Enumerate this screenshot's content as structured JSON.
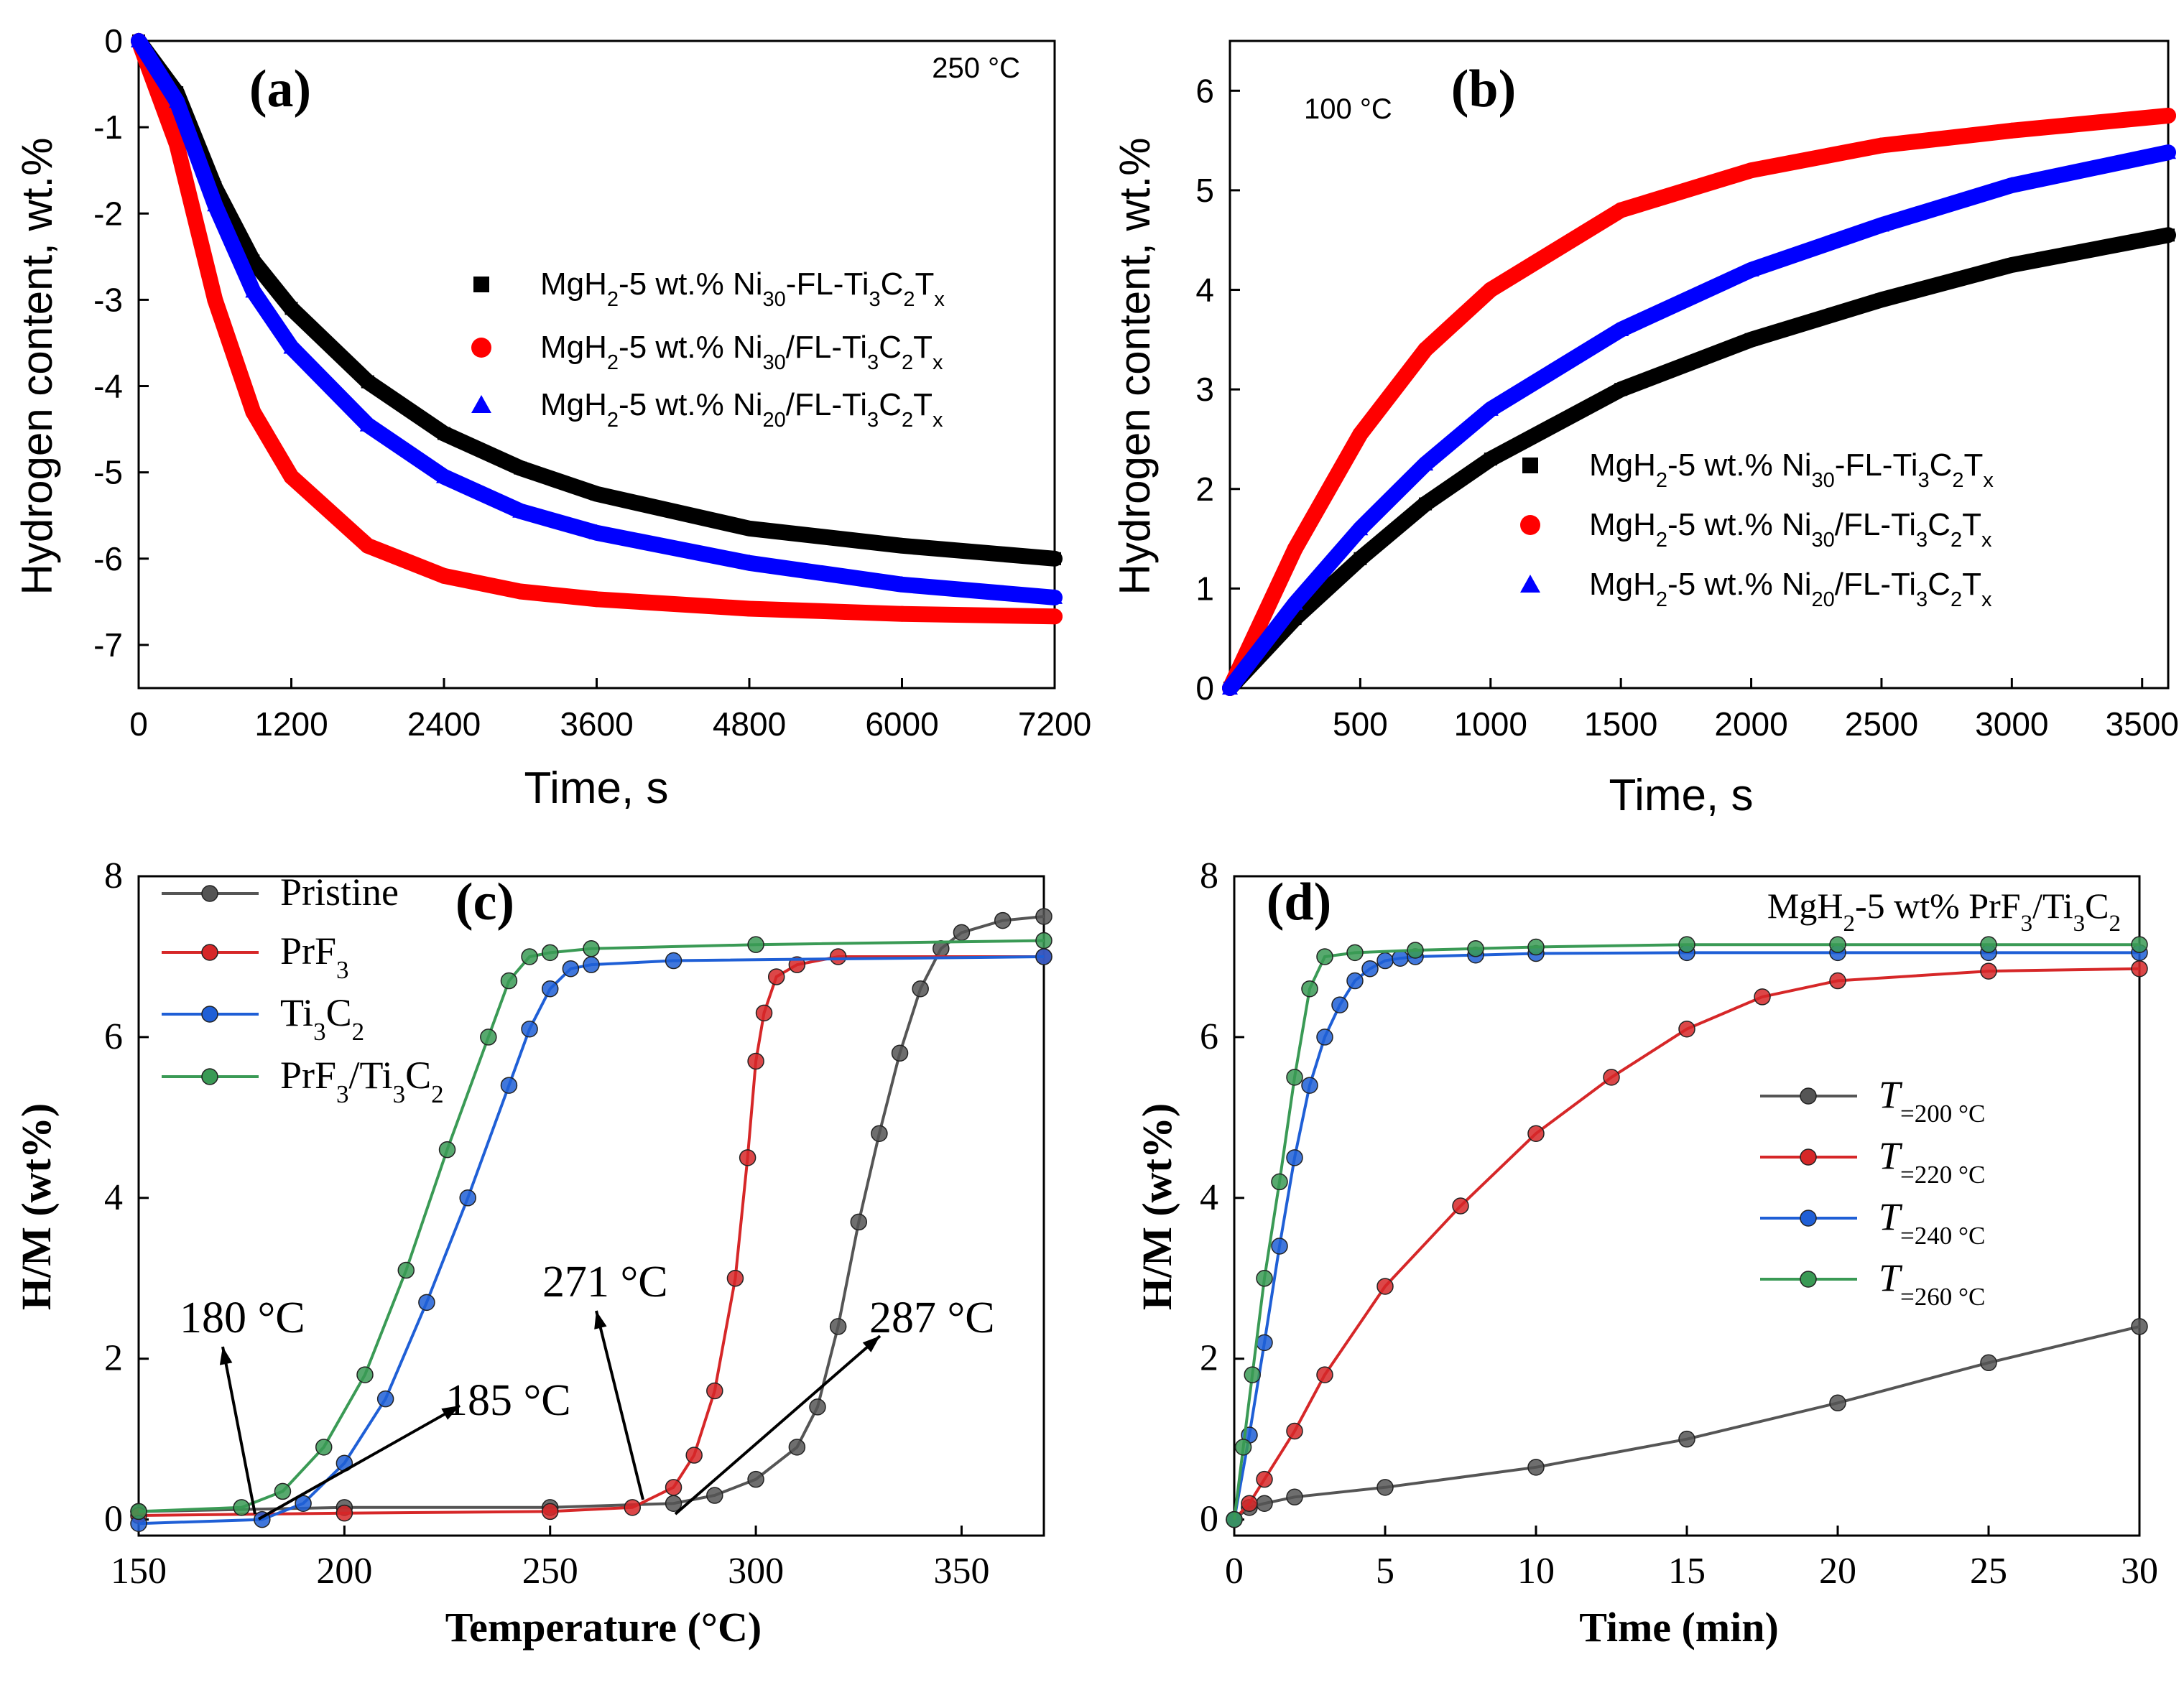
{
  "chart_data": [
    {
      "panel": "(a)",
      "type": "scatter",
      "annotation": "250 °C",
      "xlabel": "Time, s",
      "ylabel": "Hydrogen content, wt.%",
      "xlim": [
        0,
        7200
      ],
      "ylim": [
        -7.5,
        0
      ],
      "xticks": [
        0,
        1200,
        2400,
        3600,
        4800,
        6000,
        7200
      ],
      "yticks": [
        0,
        -1,
        -2,
        -3,
        -4,
        -5,
        -6,
        -7
      ],
      "legend_position": "center-right",
      "series": [
        {
          "name": "MgH2-5 wt.% Ni30-FL-Ti3C2Tx",
          "label_parts": [
            "MgH",
            "2",
            "-5 wt.% Ni",
            "30",
            "-FL-Ti",
            "3",
            "C",
            "2",
            "T",
            "x"
          ],
          "color": "#000000",
          "marker": "square",
          "x": [
            0,
            300,
            600,
            900,
            1200,
            1800,
            2400,
            3000,
            3600,
            4800,
            6000,
            7200
          ],
          "values": [
            0,
            -0.6,
            -1.7,
            -2.55,
            -3.1,
            -3.95,
            -4.55,
            -4.95,
            -5.25,
            -5.65,
            -5.85,
            -6.0
          ]
        },
        {
          "name": "MgH2-5 wt.% Ni30/FL-Ti3C2Tx",
          "label_parts": [
            "MgH",
            "2",
            "-5 wt.% Ni",
            "30",
            "/FL-Ti",
            "3",
            "C",
            "2",
            "T",
            "x"
          ],
          "color": "#ff0000",
          "marker": "circle",
          "x": [
            0,
            300,
            600,
            900,
            1200,
            1800,
            2400,
            3000,
            3600,
            4800,
            6000,
            7200
          ],
          "values": [
            0,
            -1.2,
            -3.0,
            -4.3,
            -5.05,
            -5.85,
            -6.2,
            -6.38,
            -6.47,
            -6.58,
            -6.64,
            -6.67
          ]
        },
        {
          "name": "MgH2-5 wt.% Ni20/FL-Ti3C2Tx",
          "label_parts": [
            "MgH",
            "2",
            "-5 wt.% Ni",
            "20",
            "/FL-Ti",
            "3",
            "C",
            "2",
            "T",
            "x"
          ],
          "color": "#0000ff",
          "marker": "triangle",
          "x": [
            0,
            300,
            600,
            900,
            1200,
            1800,
            2400,
            3000,
            3600,
            4800,
            6000,
            7200
          ],
          "values": [
            0,
            -0.7,
            -1.9,
            -2.9,
            -3.55,
            -4.45,
            -5.05,
            -5.45,
            -5.7,
            -6.05,
            -6.3,
            -6.45
          ]
        }
      ]
    },
    {
      "panel": "(b)",
      "type": "scatter",
      "annotation": "100 °C",
      "xlabel": "Time, s",
      "ylabel": "Hydrogen content, wt.%",
      "xlim": [
        0,
        3600
      ],
      "ylim": [
        0,
        6.5
      ],
      "xticks": [
        500,
        1000,
        1500,
        2000,
        2500,
        3000,
        3500
      ],
      "yticks": [
        0,
        1,
        2,
        3,
        4,
        5,
        6
      ],
      "legend_position": "bottom-right",
      "series": [
        {
          "name": "MgH2-5 wt.% Ni30-FL-Ti3C2Tx",
          "label_parts": [
            "MgH",
            "2",
            "-5 wt.% Ni",
            "30",
            "-FL-Ti",
            "3",
            "C",
            "2",
            "T",
            "x"
          ],
          "color": "#000000",
          "marker": "square",
          "x": [
            0,
            250,
            500,
            750,
            1000,
            1500,
            2000,
            2500,
            3000,
            3600
          ],
          "values": [
            0,
            0.7,
            1.3,
            1.85,
            2.3,
            3.0,
            3.5,
            3.9,
            4.25,
            4.55
          ]
        },
        {
          "name": "MgH2-5 wt.% Ni30/FL-Ti3C2Tx",
          "label_parts": [
            "MgH",
            "2",
            "-5 wt.% Ni",
            "30",
            "/FL-Ti",
            "3",
            "C",
            "2",
            "T",
            "x"
          ],
          "color": "#ff0000",
          "marker": "circle",
          "x": [
            0,
            250,
            500,
            750,
            1000,
            1500,
            2000,
            2500,
            3000,
            3600
          ],
          "values": [
            0,
            1.4,
            2.55,
            3.4,
            4.0,
            4.8,
            5.2,
            5.45,
            5.6,
            5.75
          ]
        },
        {
          "name": "MgH2-5 wt.% Ni20/FL-Ti3C2Tx",
          "label_parts": [
            "MgH",
            "2",
            "-5 wt.% Ni",
            "20",
            "/FL-Ti",
            "3",
            "C",
            "2",
            "T",
            "x"
          ],
          "color": "#0000ff",
          "marker": "triangle",
          "x": [
            0,
            250,
            500,
            750,
            1000,
            1500,
            2000,
            2500,
            3000,
            3600
          ],
          "values": [
            0,
            0.85,
            1.6,
            2.25,
            2.8,
            3.6,
            4.2,
            4.65,
            5.05,
            5.38
          ]
        }
      ]
    },
    {
      "panel": "(c)",
      "type": "line",
      "xlabel": "Temperature (°C)",
      "ylabel": "H/M (wt%)",
      "xlim": [
        150,
        370
      ],
      "ylim": [
        -0.2,
        8
      ],
      "xticks": [
        150,
        200,
        250,
        300,
        350
      ],
      "yticks": [
        0,
        2,
        4,
        6,
        8
      ],
      "legend_position": "top-left",
      "annotations": [
        "180 °C",
        "185 °C",
        "271 °C",
        "287 °C"
      ],
      "series": [
        {
          "name": "Pristine",
          "label_parts": [
            "Pristine"
          ],
          "color": "#555555",
          "marker": "circle",
          "x": [
            150,
            200,
            250,
            280,
            290,
            300,
            310,
            315,
            320,
            325,
            330,
            335,
            340,
            345,
            350,
            360,
            370
          ],
          "values": [
            0.1,
            0.15,
            0.15,
            0.2,
            0.3,
            0.5,
            0.9,
            1.4,
            2.4,
            3.7,
            4.8,
            5.8,
            6.6,
            7.1,
            7.3,
            7.45,
            7.5
          ]
        },
        {
          "name": "PrF3",
          "label_parts": [
            "PrF",
            "3"
          ],
          "color": "#d62728",
          "marker": "circle",
          "x": [
            150,
            200,
            250,
            270,
            280,
            285,
            290,
            295,
            298,
            300,
            302,
            305,
            310,
            320,
            370
          ],
          "values": [
            0.05,
            0.08,
            0.1,
            0.15,
            0.4,
            0.8,
            1.6,
            3.0,
            4.5,
            5.7,
            6.3,
            6.75,
            6.9,
            7.0,
            7.0
          ]
        },
        {
          "name": "Ti3C2",
          "label_parts": [
            "Ti",
            "3",
            "C",
            "2"
          ],
          "color": "#1f5fd6",
          "marker": "circle",
          "x": [
            150,
            180,
            190,
            200,
            210,
            220,
            230,
            240,
            245,
            250,
            255,
            260,
            280,
            370
          ],
          "values": [
            -0.05,
            0.0,
            0.2,
            0.7,
            1.5,
            2.7,
            4.0,
            5.4,
            6.1,
            6.6,
            6.85,
            6.9,
            6.95,
            7.0
          ]
        },
        {
          "name": "PrF3/Ti3C2",
          "label_parts": [
            "PrF",
            "3",
            "/Ti",
            "3",
            "C",
            "2"
          ],
          "color": "#3a9a55",
          "marker": "circle",
          "x": [
            150,
            175,
            185,
            195,
            205,
            215,
            225,
            235,
            240,
            245,
            250,
            260,
            300,
            370
          ],
          "values": [
            0.1,
            0.15,
            0.35,
            0.9,
            1.8,
            3.1,
            4.6,
            6.0,
            6.7,
            7.0,
            7.05,
            7.1,
            7.15,
            7.2
          ]
        }
      ]
    },
    {
      "panel": "(d)",
      "type": "line",
      "title": "MgH2-5 wt% PrF3/Ti3C2",
      "title_parts": [
        "MgH",
        "2",
        "-5 wt% PrF",
        "3",
        "/Ti",
        "3",
        "C",
        "2"
      ],
      "xlabel": "Time (min)",
      "ylabel": "H/M (wt%)",
      "xlim": [
        0,
        30
      ],
      "ylim": [
        -0.2,
        8
      ],
      "xticks": [
        0,
        5,
        10,
        15,
        20,
        25,
        30
      ],
      "yticks": [
        0,
        2,
        4,
        6,
        8
      ],
      "legend_position": "center-right",
      "series": [
        {
          "name": "T=200 °C",
          "label_parts": [
            "T",
            "=200 °C"
          ],
          "color": "#555555",
          "marker": "circle",
          "x": [
            0,
            0.5,
            1,
            2,
            5,
            10,
            15,
            20,
            25,
            30
          ],
          "values": [
            0,
            0.15,
            0.2,
            0.28,
            0.4,
            0.65,
            1.0,
            1.45,
            1.95,
            2.4
          ]
        },
        {
          "name": "T=220 °C",
          "label_parts": [
            "T",
            "=220 °C"
          ],
          "color": "#d62728",
          "marker": "circle",
          "x": [
            0,
            0.5,
            1,
            2,
            3,
            5,
            7.5,
            10,
            12.5,
            15,
            17.5,
            20,
            25,
            30
          ],
          "values": [
            0,
            0.2,
            0.5,
            1.1,
            1.8,
            2.9,
            3.9,
            4.8,
            5.5,
            6.1,
            6.5,
            6.7,
            6.82,
            6.85
          ]
        },
        {
          "name": "T=240 °C",
          "label_parts": [
            "T",
            "=240 °C"
          ],
          "color": "#1f5fd6",
          "marker": "circle",
          "x": [
            0,
            0.5,
            1,
            1.5,
            2,
            2.5,
            3,
            3.5,
            4,
            4.5,
            5,
            5.5,
            6,
            8,
            10,
            15,
            20,
            25,
            30
          ],
          "values": [
            0,
            1.05,
            2.2,
            3.4,
            4.5,
            5.4,
            6.0,
            6.4,
            6.7,
            6.85,
            6.95,
            6.98,
            7.0,
            7.02,
            7.04,
            7.05,
            7.05,
            7.05,
            7.05
          ]
        },
        {
          "name": "T=260 °C",
          "label_parts": [
            "T",
            "=260 °C"
          ],
          "color": "#3a9a55",
          "marker": "circle",
          "x": [
            0,
            0.3,
            0.6,
            1,
            1.5,
            2,
            2.5,
            3,
            4,
            6,
            8,
            10,
            15,
            20,
            25,
            30
          ],
          "values": [
            0,
            0.9,
            1.8,
            3.0,
            4.2,
            5.5,
            6.6,
            7.0,
            7.05,
            7.08,
            7.1,
            7.12,
            7.15,
            7.15,
            7.15,
            7.15
          ]
        }
      ]
    }
  ]
}
